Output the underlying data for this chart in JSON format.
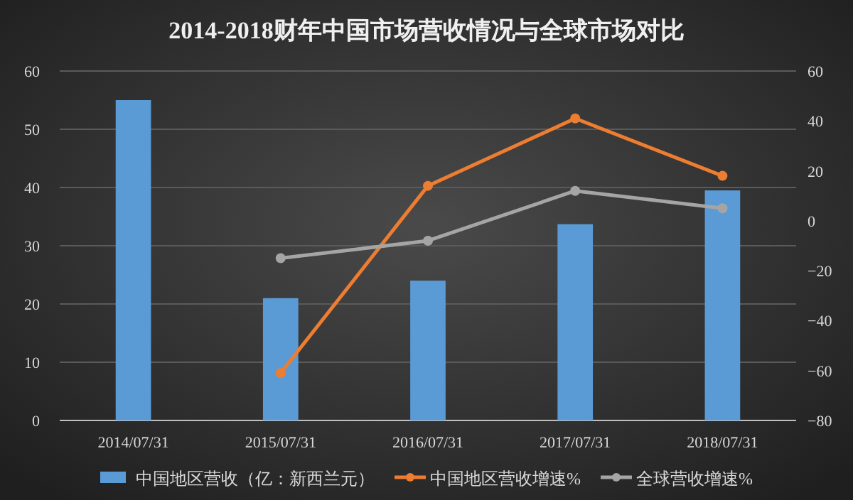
{
  "chart_data": {
    "type": "bar",
    "title": "2014-2018财年中国市场营收情况与全球市场对比",
    "categories": [
      "2014/07/31",
      "2015/07/31",
      "2016/07/31",
      "2017/07/31",
      "2018/07/31"
    ],
    "series": [
      {
        "name": "中国地区营收（亿：新西兰元）",
        "color": "#5b9bd5",
        "values": [
          55,
          21,
          24,
          33.7,
          39.5
        ]
      },
      {
        "name": "中国地区营收增速%",
        "color": "#ed7d31",
        "type": "line",
        "axis": "y2",
        "marker": "circle",
        "values": [
          null,
          -61,
          14,
          41,
          18
        ]
      },
      {
        "name": "全球营收增速%",
        "color": "#a5a5a5",
        "type": "line",
        "axis": "y2",
        "marker": "circle",
        "values": [
          null,
          -15,
          -8,
          12,
          5
        ]
      }
    ],
    "ylim": [
      0,
      60
    ],
    "yticks": [
      0,
      10,
      20,
      30,
      40,
      50,
      60
    ],
    "y2lim": [
      -80,
      60
    ],
    "y2ticks": [
      -80,
      -60,
      -40,
      -20,
      0,
      20,
      40,
      60
    ],
    "grid": "y",
    "legend": "bottom"
  }
}
